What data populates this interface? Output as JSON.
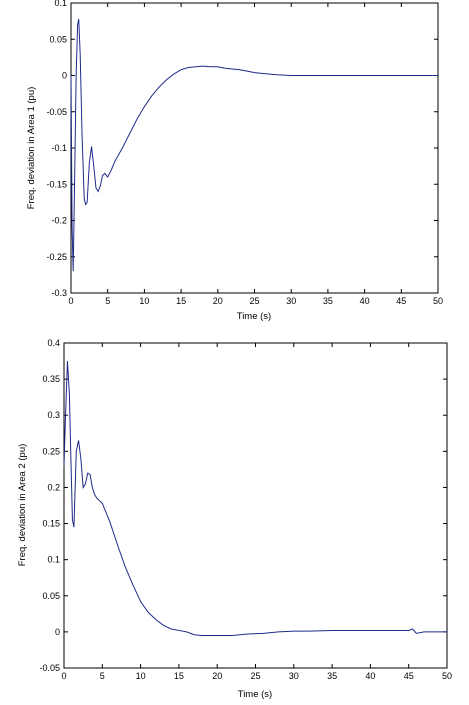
{
  "chart_data": [
    {
      "type": "line",
      "xlabel": "Time (s)",
      "ylabel": "Freq. deviation in Area 1 (pu)",
      "xlim": [
        0,
        50
      ],
      "ylim": [
        -0.3,
        0.1
      ],
      "xticks": [
        0,
        5,
        10,
        15,
        20,
        25,
        30,
        35,
        40,
        45,
        50
      ],
      "yticks": [
        -0.3,
        -0.25,
        -0.2,
        -0.15,
        -0.1,
        -0.05,
        0,
        0.05,
        0.1
      ],
      "grid": false,
      "line_color": "#1f2a8a",
      "series": [
        {
          "x": [
            0,
            0.15,
            0.3,
            0.5,
            0.7,
            0.9,
            1.05,
            1.25,
            1.5,
            1.8,
            2.0,
            2.2,
            2.5,
            2.8,
            3.1,
            3.4,
            3.7,
            4.0,
            4.3,
            4.6,
            5.0,
            5.5,
            6.0,
            7.0,
            8.0,
            9.0,
            10.0,
            11.0,
            12.0,
            13.0,
            14.0,
            15.0,
            16.0,
            17.0,
            18.0,
            19.0,
            20.0,
            21.0,
            22.0,
            23.0,
            24.0,
            25.0,
            26.0,
            28.0,
            30.0,
            35.0,
            40.0,
            45.0,
            50.0
          ],
          "y": [
            0,
            -0.21,
            -0.27,
            -0.14,
            0.0,
            0.07,
            0.078,
            0.03,
            -0.08,
            -0.17,
            -0.178,
            -0.175,
            -0.12,
            -0.098,
            -0.125,
            -0.155,
            -0.16,
            -0.152,
            -0.138,
            -0.135,
            -0.14,
            -0.13,
            -0.118,
            -0.1,
            -0.08,
            -0.06,
            -0.043,
            -0.028,
            -0.016,
            -0.006,
            0.002,
            0.008,
            0.011,
            0.012,
            0.013,
            0.012,
            0.012,
            0.01,
            0.009,
            0.008,
            0.006,
            0.004,
            0.003,
            0.001,
            0.0,
            0.0,
            0.0,
            0.0,
            0.0
          ]
        }
      ]
    },
    {
      "type": "line",
      "xlabel": "Time (s)",
      "ylabel": "Freq. deviation in Area 2 (pu)",
      "xlim": [
        0,
        50
      ],
      "ylim": [
        -0.05,
        0.4
      ],
      "xticks": [
        0,
        5,
        10,
        15,
        20,
        25,
        30,
        35,
        40,
        45,
        50
      ],
      "yticks": [
        -0.05,
        0,
        0.05,
        0.1,
        0.15,
        0.2,
        0.25,
        0.3,
        0.35,
        0.4
      ],
      "grid": false,
      "line_color": "#1f2a8a",
      "series": [
        {
          "x": [
            0,
            0.2,
            0.45,
            0.7,
            0.9,
            1.1,
            1.3,
            1.6,
            1.9,
            2.2,
            2.5,
            2.8,
            3.1,
            3.4,
            3.7,
            4.0,
            4.3,
            4.6,
            5.0,
            5.5,
            6.0,
            7.0,
            8.0,
            9.0,
            10.0,
            11.0,
            12.0,
            13.0,
            14.0,
            15.0,
            16.0,
            17.0,
            18.0,
            20.0,
            22.0,
            23.0,
            24.0,
            26.0,
            28.0,
            30.0,
            32.0,
            35.0,
            40.0,
            44.0,
            45.0,
            45.5,
            46.0,
            47.0,
            50.0
          ],
          "y": [
            0.23,
            0.3,
            0.375,
            0.33,
            0.24,
            0.155,
            0.145,
            0.25,
            0.265,
            0.24,
            0.2,
            0.205,
            0.22,
            0.218,
            0.2,
            0.19,
            0.185,
            0.182,
            0.178,
            0.165,
            0.152,
            0.12,
            0.09,
            0.065,
            0.042,
            0.027,
            0.017,
            0.009,
            0.004,
            0.002,
            0.0,
            -0.004,
            -0.005,
            -0.005,
            -0.005,
            -0.004,
            -0.003,
            -0.002,
            0.0,
            0.001,
            0.001,
            0.002,
            0.002,
            0.002,
            0.002,
            0.004,
            -0.002,
            0.0,
            0.0
          ]
        }
      ]
    }
  ]
}
